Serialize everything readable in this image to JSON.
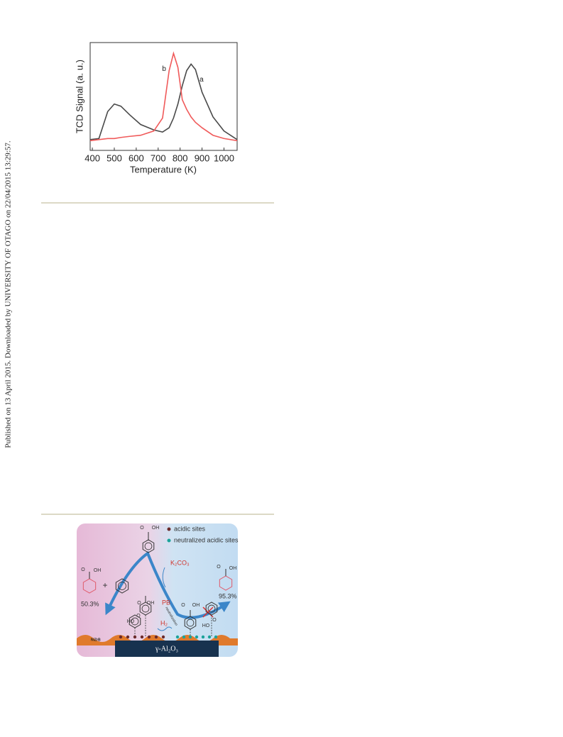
{
  "side_note": "Published on 13 April 2015. Downloaded by UNIVERSITY OF OTAGO on 22/04/2015 13:29:57.",
  "chart_data": {
    "type": "line",
    "ylabel": "TCD Signal (a. u.)",
    "xlabel": "Temperature (K)",
    "x": [
      390,
      430,
      470,
      500,
      530,
      570,
      620,
      680,
      720,
      750,
      770,
      790,
      810,
      830,
      850,
      870,
      900,
      950,
      1000,
      1060
    ],
    "series": [
      {
        "name": "a",
        "color": "#4a4a4a",
        "values": [
          0.1,
          0.11,
          0.36,
          0.43,
          0.41,
          0.33,
          0.24,
          0.19,
          0.17,
          0.21,
          0.3,
          0.43,
          0.6,
          0.74,
          0.8,
          0.75,
          0.54,
          0.31,
          0.18,
          0.1
        ]
      },
      {
        "name": "b",
        "color": "#f05a5a",
        "values": [
          0.09,
          0.1,
          0.11,
          0.11,
          0.12,
          0.13,
          0.14,
          0.18,
          0.3,
          0.74,
          0.9,
          0.77,
          0.47,
          0.38,
          0.31,
          0.26,
          0.21,
          0.14,
          0.11,
          0.09
        ]
      }
    ],
    "xlim": [
      390,
      1060
    ],
    "xticks": [
      400,
      500,
      600,
      700,
      800,
      900,
      1000
    ],
    "ylim": [
      0,
      1
    ]
  },
  "graphic": {
    "legend_acidic": "acidic sites",
    "legend_neutral": "neutralized acidic sites",
    "reagent": "K₂CO₃",
    "pb": "PB",
    "neutralization": "neutralization",
    "h2": "H₂",
    "yield_left": "50.3%",
    "yield_right": "95.3%",
    "plus": "+",
    "catalyst": "NiZrB",
    "support": "γ-Al₂O₃",
    "atoms": [
      "O",
      "OH",
      "O",
      "OH",
      "O",
      "OH",
      "O",
      "OH",
      "HO",
      "O",
      "O",
      "OH",
      "HO",
      "O"
    ]
  }
}
